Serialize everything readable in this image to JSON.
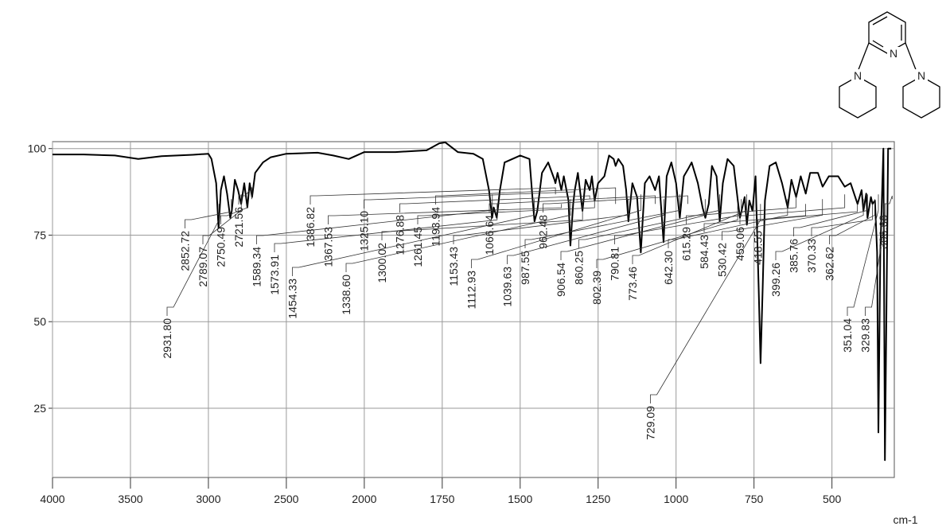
{
  "chart_data": {
    "type": "line",
    "xlabel": "cm-1",
    "xlim": [
      4000,
      300
    ],
    "xbreak": 2000,
    "ylim": [
      5,
      102
    ],
    "xticks": [
      4000,
      3500,
      3000,
      2500,
      2000,
      1750,
      1500,
      1250,
      1000,
      750,
      500
    ],
    "yticks": [
      25,
      50,
      75,
      100
    ],
    "grid": true,
    "series": [
      {
        "color": "#000000",
        "x": [
          4000,
          3800,
          3600,
          3450,
          3300,
          3100,
          3000,
          2980,
          2950,
          2935,
          2920,
          2900,
          2880,
          2860,
          2850,
          2830,
          2810,
          2790,
          2770,
          2750,
          2735,
          2720,
          2700,
          2650,
          2600,
          2500,
          2300,
          2200,
          2100,
          2000,
          1900,
          1800,
          1760,
          1740,
          1700,
          1650,
          1620,
          1600,
          1590,
          1585,
          1575,
          1565,
          1550,
          1500,
          1470,
          1460,
          1454,
          1445,
          1430,
          1410,
          1390,
          1387,
          1380,
          1368,
          1360,
          1345,
          1339,
          1330,
          1325,
          1315,
          1300,
          1290,
          1277,
          1270,
          1261,
          1250,
          1230,
          1215,
          1200,
          1194,
          1185,
          1170,
          1160,
          1153,
          1140,
          1125,
          1113,
          1100,
          1085,
          1067,
          1055,
          1040,
          1030,
          1015,
          1000,
          988,
          975,
          962,
          950,
          930,
          915,
          906,
          895,
          885,
          870,
          860,
          850,
          835,
          815,
          802,
          795,
          790,
          780,
          773,
          765,
          755,
          745,
          735,
          729,
          722,
          715,
          700,
          680,
          660,
          642,
          630,
          615,
          600,
          584,
          570,
          545,
          530,
          510,
          480,
          459,
          440,
          418,
          405,
          399,
          390,
          386,
          375,
          370,
          362,
          355,
          351,
          345,
          335,
          330,
          320,
          310
        ],
        "values": [
          98.3,
          98.3,
          98,
          97,
          97.8,
          98.2,
          98.5,
          97,
          90,
          77,
          88,
          92,
          87,
          80,
          82,
          91,
          88,
          84,
          90,
          83,
          90,
          86,
          93,
          96,
          97.5,
          98.5,
          98.8,
          98,
          97,
          99,
          99,
          99.5,
          101.5,
          101.8,
          99,
          98.5,
          97,
          88,
          80,
          83,
          80,
          88,
          96,
          98,
          97,
          85,
          79,
          82,
          93,
          96,
          91,
          90,
          93,
          88,
          92,
          85,
          72,
          84,
          88,
          93,
          82,
          91,
          88,
          92,
          85,
          90,
          92,
          98,
          97,
          95,
          97,
          95,
          88,
          79,
          90,
          86,
          70,
          90,
          92,
          88,
          92,
          73,
          92,
          96,
          90,
          80,
          92,
          94,
          96,
          90,
          83,
          80,
          84,
          95,
          92,
          79,
          90,
          97,
          95,
          85,
          80,
          82,
          86,
          78,
          85,
          82,
          92,
          60,
          38,
          60,
          85,
          95,
          96,
          90,
          83,
          91,
          86,
          92,
          87,
          93,
          93,
          89,
          92,
          92,
          89,
          90,
          84,
          88,
          82,
          87,
          80,
          86,
          84,
          85,
          70,
          18,
          70,
          100,
          10,
          100,
          100
        ]
      }
    ],
    "peak_x": [
      2931.8,
      2852.72,
      2789.07,
      2750.49,
      2721.56,
      1589.34,
      1573.91,
      1454.33,
      1386.82,
      1367.53,
      1338.6,
      1325.1,
      1300.02,
      1276.88,
      1261.45,
      1193.94,
      1153.43,
      1112.93,
      1066.64,
      1039.63,
      987.55,
      962.48,
      906.54,
      860.25,
      802.39,
      790.81,
      773.46,
      729.09,
      642.3,
      615.29,
      584.43,
      530.42,
      459.06,
      418.55,
      399.26,
      385.76,
      370.33,
      362.62,
      351.04,
      329.83,
      306.68
    ],
    "peak_labels": [
      "2931.80",
      "2852.72",
      "2789.07",
      "2750.49",
      "2721.56",
      "1589.34",
      "1573.91",
      "1454.33",
      "1386.82",
      "1367.53",
      "1338.60",
      "1325.10",
      "1300.02",
      "1276.88",
      "1261.45",
      "1193.94",
      "1153.43",
      "1112.93",
      "1066.64",
      "1039.63",
      "987.55",
      "962.48",
      "906.54",
      "860.25",
      "802.39",
      "790.81",
      "773.46",
      "729.09",
      "642.30",
      "615.29",
      "584.43",
      "530.42",
      "459.06",
      "418.55",
      "399.26",
      "385.76",
      "370.33",
      "362.62",
      "351.04",
      "329.83",
      "306.68"
    ]
  },
  "structure": {
    "atoms": [
      "N",
      "N",
      "N"
    ]
  }
}
